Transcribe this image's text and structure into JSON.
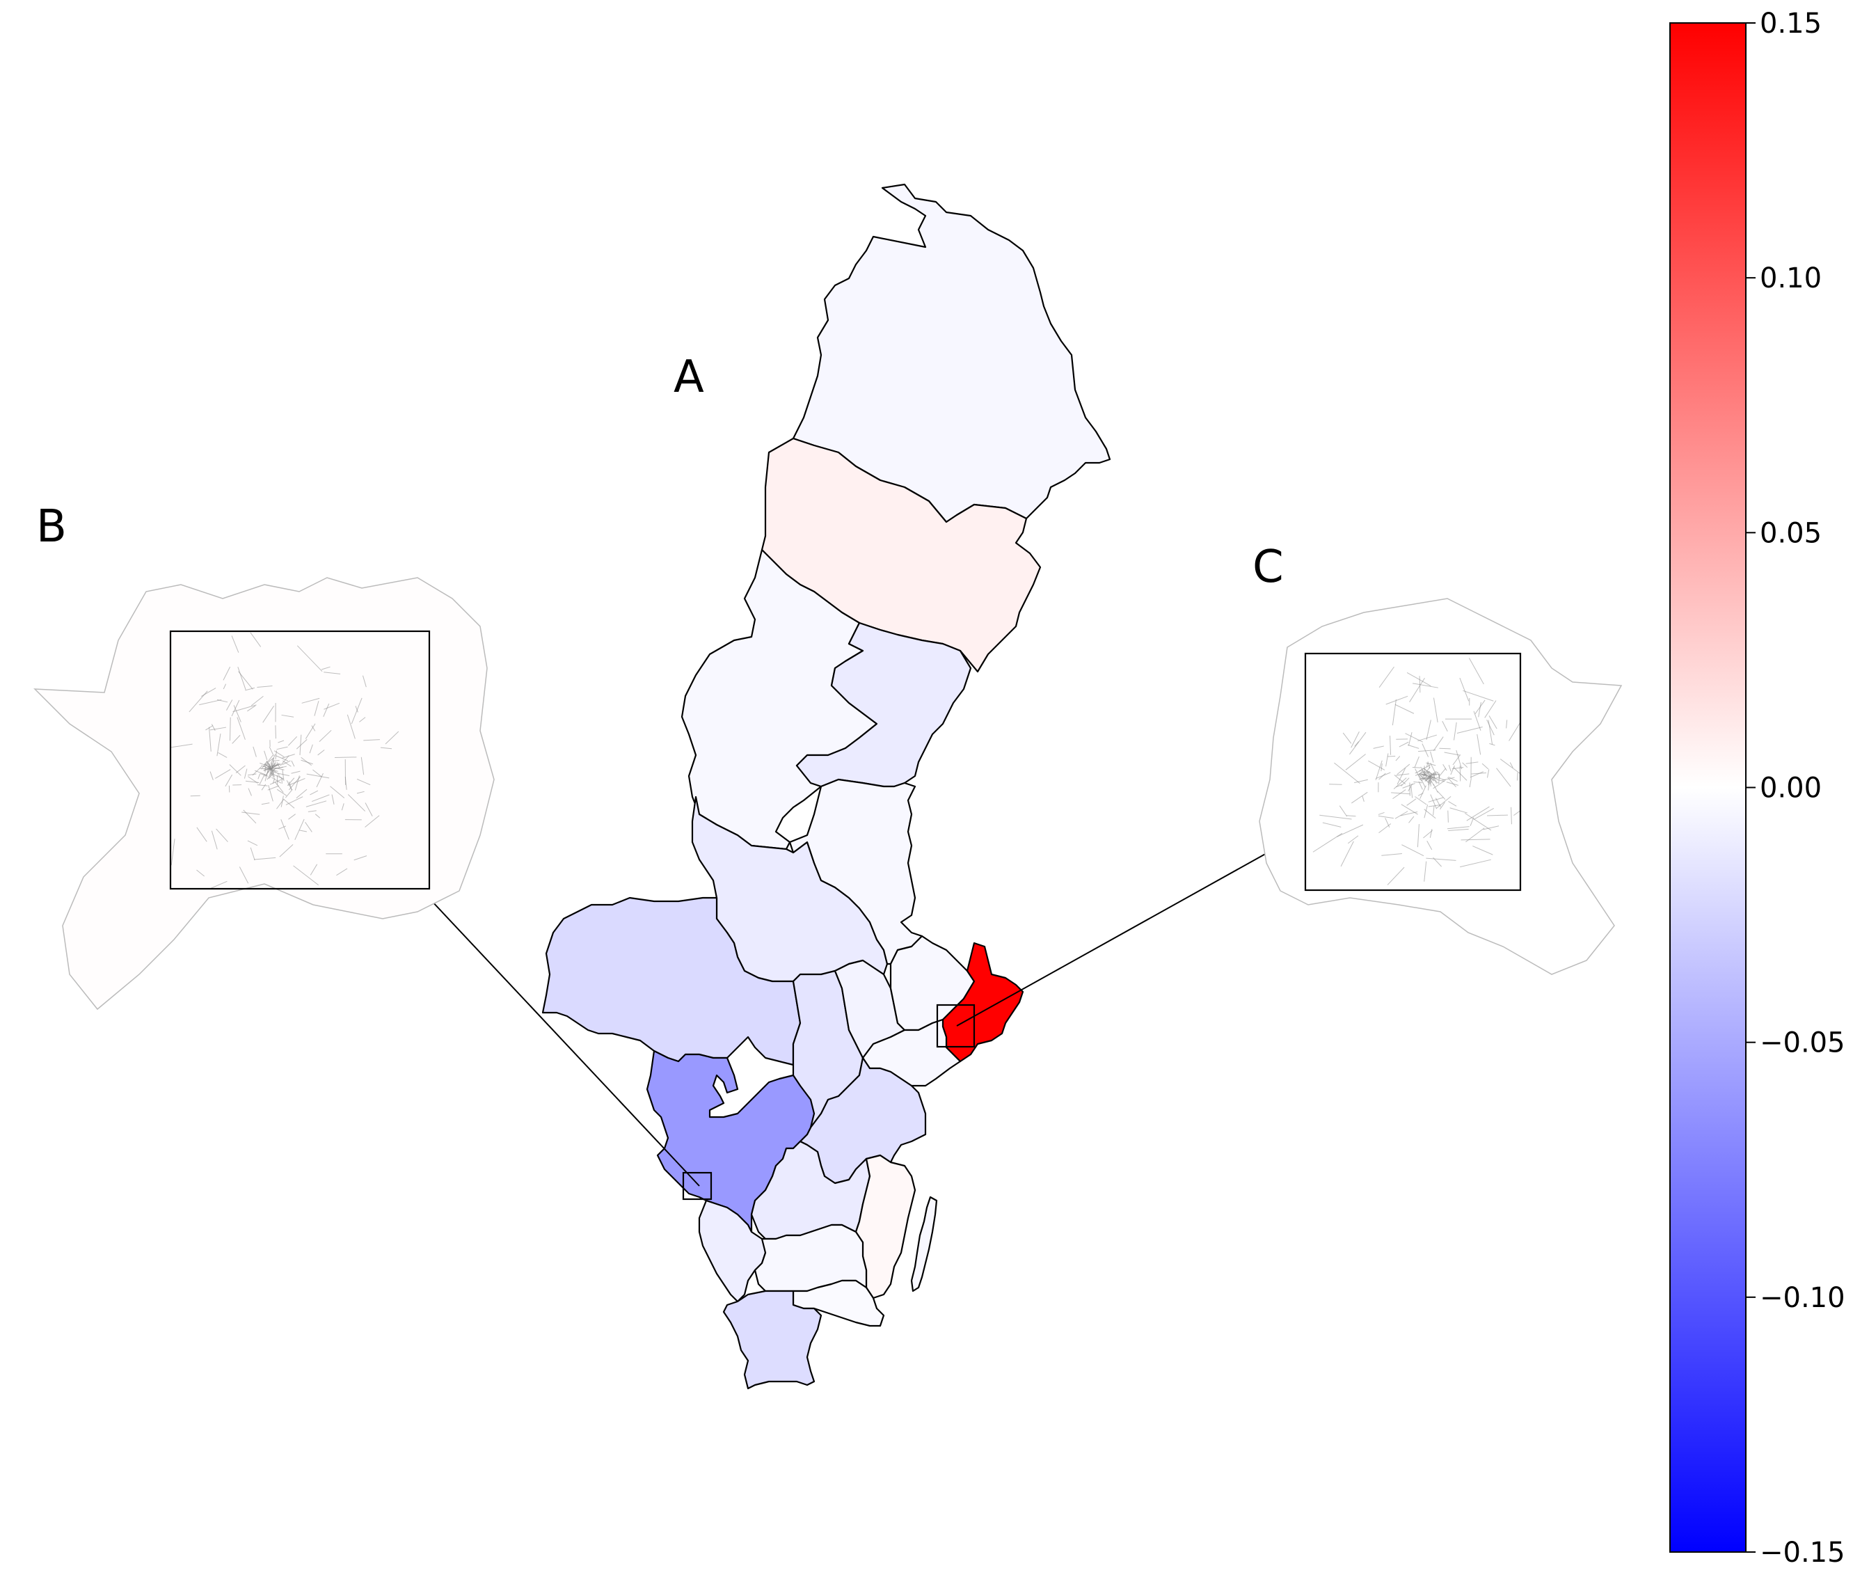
{
  "panels": [
    {
      "key": "A",
      "label": "A"
    },
    {
      "key": "B",
      "label": "B"
    },
    {
      "key": "C",
      "label": "C"
    }
  ],
  "colorbar": {
    "colormap": "bwr",
    "colors": {
      "low": "#0000ff",
      "mid": "#ffffff",
      "high": "#ff0000"
    },
    "min": -0.15,
    "max": 0.15,
    "ticks": [
      {
        "value": 0.15,
        "label": "0.15"
      },
      {
        "value": 0.1,
        "label": "0.10"
      },
      {
        "value": 0.05,
        "label": "0.05"
      },
      {
        "value": 0.0,
        "label": "0.00"
      },
      {
        "value": -0.05,
        "label": "−0.05"
      },
      {
        "value": -0.1,
        "label": "−0.10"
      },
      {
        "value": -0.15,
        "label": "−0.15"
      }
    ]
  },
  "map_regions": [
    {
      "id": "norrbotten",
      "value": -0.005
    },
    {
      "id": "vasterbotten",
      "value": 0.008
    },
    {
      "id": "jamtland",
      "value": -0.004
    },
    {
      "id": "vasternorrland",
      "value": -0.012
    },
    {
      "id": "dalarna",
      "value": -0.012
    },
    {
      "id": "gavleborg",
      "value": -0.004
    },
    {
      "id": "varmland",
      "value": -0.022
    },
    {
      "id": "orebro",
      "value": -0.016
    },
    {
      "id": "vastmanland",
      "value": -0.007
    },
    {
      "id": "uppsala",
      "value": -0.004
    },
    {
      "id": "sodermanland",
      "value": -0.004
    },
    {
      "id": "stockholm",
      "value": 0.15
    },
    {
      "id": "vastra-gotaland",
      "value": -0.06
    },
    {
      "id": "ostergotland",
      "value": -0.018
    },
    {
      "id": "jonkoping",
      "value": -0.012
    },
    {
      "id": "kalmar",
      "value": 0.004
    },
    {
      "id": "halland",
      "value": -0.01
    },
    {
      "id": "kronoberg",
      "value": -0.004
    },
    {
      "id": "blekinge",
      "value": -0.003
    },
    {
      "id": "skane",
      "value": -0.02
    },
    {
      "id": "gotland",
      "value": -0.004
    }
  ]
}
